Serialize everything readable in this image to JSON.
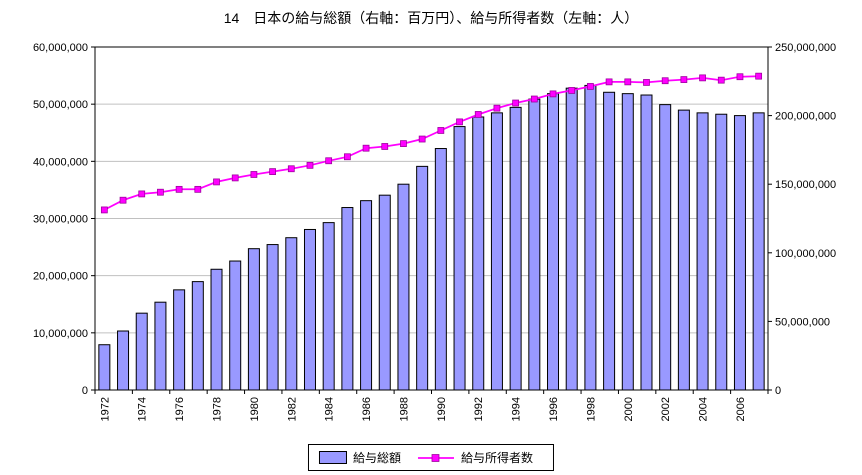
{
  "chart_data": {
    "type": "bar",
    "title": "14　日本の給与総額（右軸：百万円）、給与所得者数（左軸：人）",
    "gridline_color": "#c0c0c0",
    "legend_position": "bottom",
    "categories": [
      1972,
      1973,
      1974,
      1975,
      1976,
      1977,
      1978,
      1979,
      1980,
      1981,
      1982,
      1983,
      1984,
      1985,
      1986,
      1987,
      1988,
      1989,
      1990,
      1991,
      1992,
      1993,
      1994,
      1995,
      1996,
      1997,
      1998,
      1999,
      2000,
      2001,
      2002,
      2003,
      2004,
      2005,
      2006,
      2007
    ],
    "series": [
      {
        "name": "給与総額",
        "chart_type": "bar",
        "axis": "right",
        "color": "#9999ff",
        "border_color": "#000000",
        "values": [
          33000000,
          43000000,
          56000000,
          64000000,
          73000000,
          79000000,
          88000000,
          94000000,
          103000000,
          106000000,
          111000000,
          117000000,
          122000000,
          133000000,
          138000000,
          142000000,
          150000000,
          163000000,
          176000000,
          192000000,
          199000000,
          202000000,
          206000000,
          212000000,
          216000000,
          220000000,
          222000000,
          217000000,
          216000000,
          215000000,
          208000000,
          204000000,
          202000000,
          201000000,
          200000000,
          202000000
        ]
      },
      {
        "name": "給与所得者数",
        "chart_type": "line",
        "axis": "left",
        "color": "#ff00ff",
        "marker": "square",
        "marker_border": "#990099",
        "values": [
          31500000,
          33200000,
          34300000,
          34600000,
          35100000,
          35100000,
          36400000,
          37100000,
          37700000,
          38200000,
          38700000,
          39300000,
          40100000,
          40800000,
          42300000,
          42600000,
          43100000,
          43900000,
          45400000,
          46900000,
          48200000,
          49300000,
          50200000,
          50900000,
          51800000,
          52400000,
          53100000,
          53900000,
          53900000,
          53800000,
          54100000,
          54300000,
          54600000,
          54200000,
          54800000,
          54900000
        ]
      }
    ],
    "left_axis": {
      "min": 0,
      "max": 60000000,
      "step": 10000000,
      "tick_labels": [
        "0",
        "10,000,000",
        "20,000,000",
        "30,000,000",
        "40,000,000",
        "50,000,000",
        "60,000,000"
      ]
    },
    "right_axis": {
      "min": 0,
      "max": 250000000,
      "step": 50000000,
      "tick_labels": [
        "0",
        "50,000,000",
        "100,000,000",
        "150,000,000",
        "200,000,000",
        "250,000,000"
      ]
    },
    "x_tick_labels": [
      "1972",
      "1974",
      "1976",
      "1978",
      "1980",
      "1982",
      "1984",
      "1986",
      "1988",
      "1990",
      "1992",
      "1994",
      "1996",
      "1998",
      "2000",
      "2002",
      "2004",
      "2006"
    ]
  },
  "legend": {
    "bar_label": "給与総額",
    "line_label": "給与所得者数"
  }
}
